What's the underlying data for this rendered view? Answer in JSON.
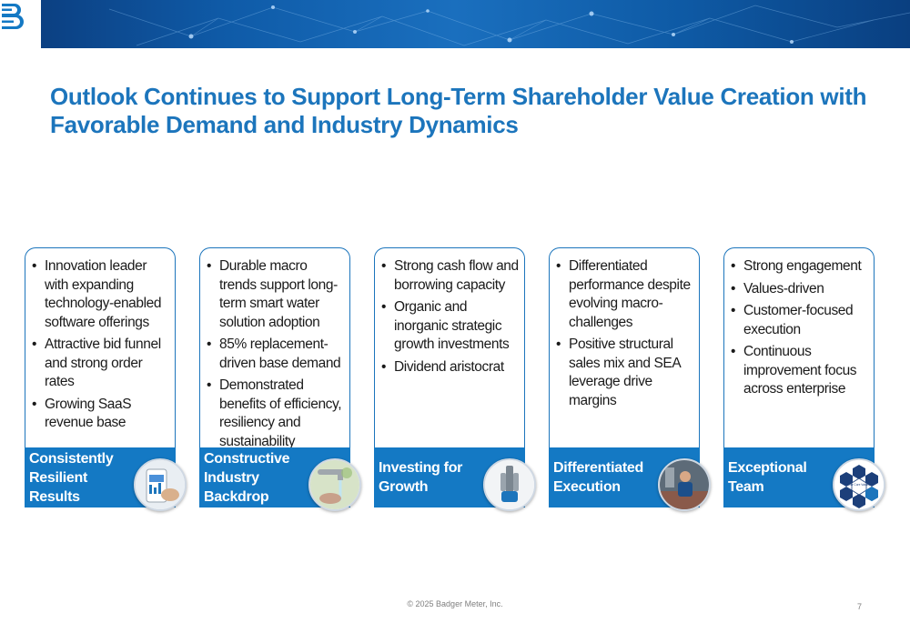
{
  "title": "Outlook Continues to Support Long-Term Shareholder Value Creation with Favorable Demand and Industry Dynamics",
  "cards": [
    {
      "bullets": [
        "Innovation leader with expanding technology-enabled software offerings",
        "Attractive bid funnel and strong order rates",
        "Growing SaaS revenue base"
      ],
      "footer": "Consistently Resilient Results",
      "icon": "mobile-app-analytics-icon"
    },
    {
      "bullets": [
        "Durable macro trends support long-term smart water solution adoption",
        "85% replacement-driven base demand",
        "Demonstrated benefits of efficiency, resiliency and sustainability"
      ],
      "footer": "Constructive Industry Backdrop",
      "icon": "water-faucet-icon"
    },
    {
      "bullets": [
        "Strong cash flow and borrowing capacity",
        "Organic and inorganic strategic growth investments",
        "Dividend aristocrat"
      ],
      "footer": "Investing for Growth",
      "icon": "water-quality-sensor-icon"
    },
    {
      "bullets": [
        "Differentiated performance despite evolving macro-challenges",
        "Positive structural sales mix and SEA leverage drive margins"
      ],
      "footer": "Differentiated Execution",
      "icon": "manufacturing-worker-icon"
    },
    {
      "bullets": [
        "Strong engagement",
        "Values-driven",
        "Customer-focused execution",
        "Continuous improvement focus across enterprise"
      ],
      "footer": "Exceptional Team",
      "icon": "core-values-hexagon-icon",
      "icon_center_text": "Our Core Values"
    }
  ],
  "copyright": "© 2025 Badger Meter, Inc.",
  "page_number": "7",
  "colors": {
    "accent": "#1c75bc",
    "footer": "#1479c4",
    "banner": "#0f5ba8"
  }
}
